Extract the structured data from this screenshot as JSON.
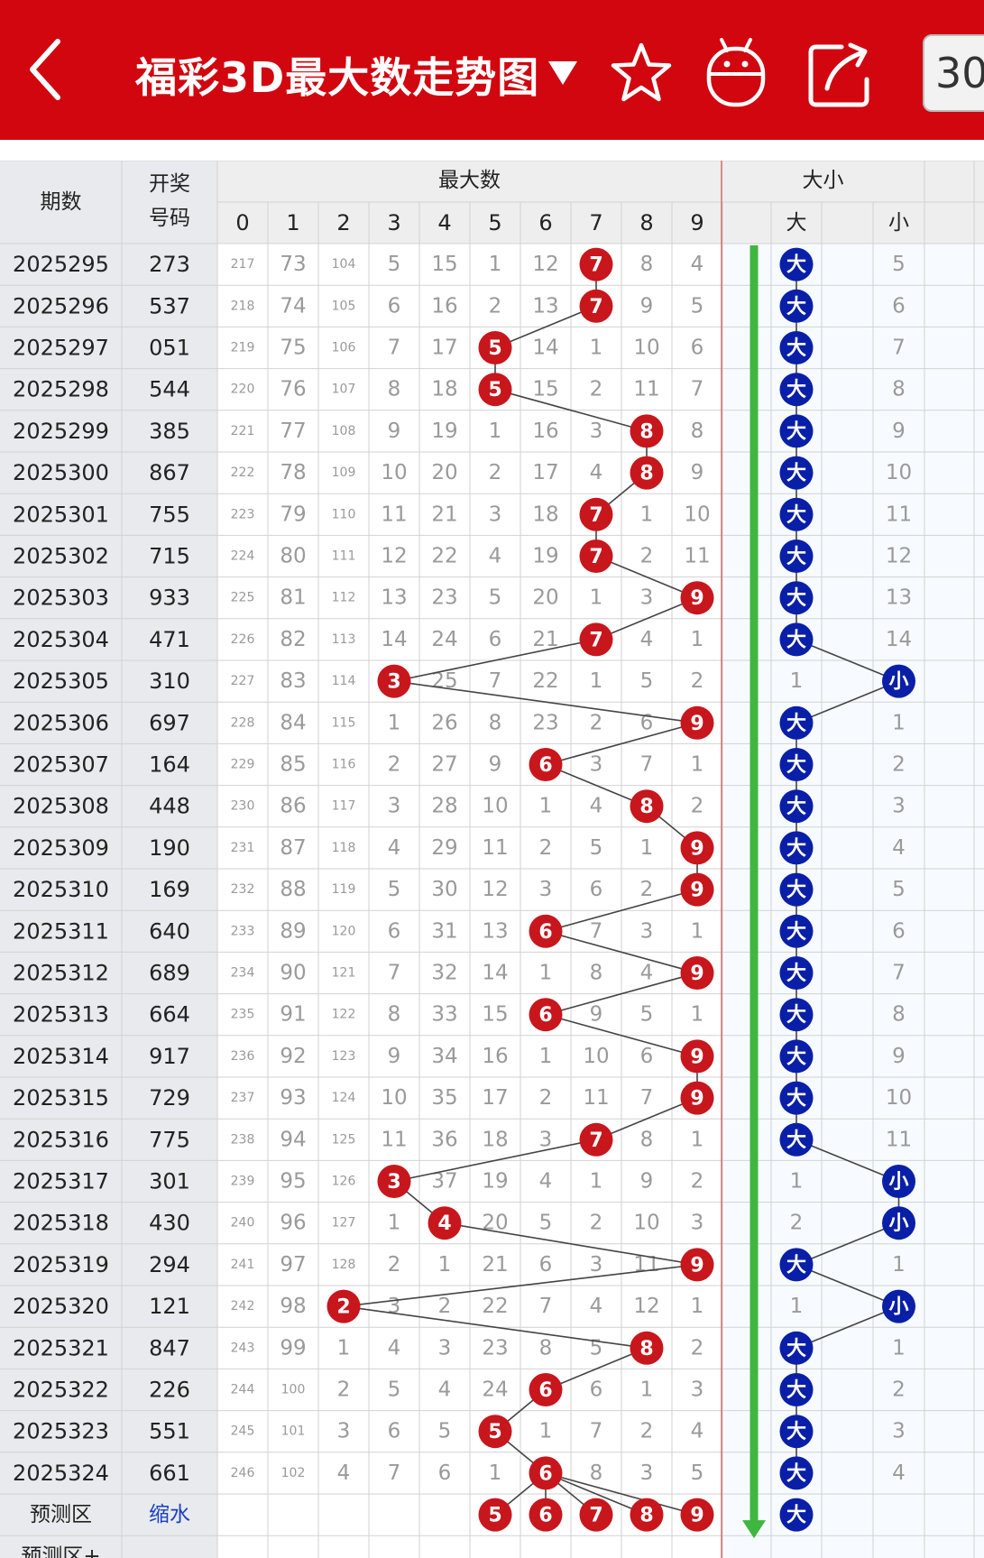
{
  "header": {
    "title": "福彩3D最大数走势图",
    "dropdown_icon": "triangle-down-icon",
    "star_icon": "star-icon",
    "android_icon": "android-icon",
    "share_icon": "share-icon",
    "period_value": "30"
  },
  "table": {
    "headers": {
      "period": "期数",
      "draw": "开奖\n号码",
      "max_group": "最大数",
      "size_group": "大小",
      "digits": [
        "0",
        "1",
        "2",
        "3",
        "4",
        "5",
        "6",
        "7",
        "8",
        "9"
      ],
      "big": "大",
      "small": "小"
    },
    "rows": [
      {
        "period": "2025295",
        "draw": "273",
        "max": 7,
        "miss": [
          "217",
          "73",
          "104",
          "5",
          "15",
          "1",
          "12",
          "",
          "8",
          "4"
        ],
        "size": "大",
        "small_miss": "5"
      },
      {
        "period": "2025296",
        "draw": "537",
        "max": 7,
        "miss": [
          "218",
          "74",
          "105",
          "6",
          "16",
          "2",
          "13",
          "",
          "9",
          "5"
        ],
        "size": "大",
        "small_miss": "6"
      },
      {
        "period": "2025297",
        "draw": "051",
        "max": 5,
        "miss": [
          "219",
          "75",
          "106",
          "7",
          "17",
          "",
          "14",
          "1",
          "10",
          "6"
        ],
        "size": "大",
        "small_miss": "7"
      },
      {
        "period": "2025298",
        "draw": "544",
        "max": 5,
        "miss": [
          "220",
          "76",
          "107",
          "8",
          "18",
          "",
          "15",
          "2",
          "11",
          "7"
        ],
        "size": "大",
        "small_miss": "8"
      },
      {
        "period": "2025299",
        "draw": "385",
        "max": 8,
        "miss": [
          "221",
          "77",
          "108",
          "9",
          "19",
          "1",
          "16",
          "3",
          "",
          "8"
        ],
        "size": "大",
        "small_miss": "9"
      },
      {
        "period": "2025300",
        "draw": "867",
        "max": 8,
        "miss": [
          "222",
          "78",
          "109",
          "10",
          "20",
          "2",
          "17",
          "4",
          "",
          "9"
        ],
        "size": "大",
        "small_miss": "10"
      },
      {
        "period": "2025301",
        "draw": "755",
        "max": 7,
        "miss": [
          "223",
          "79",
          "110",
          "11",
          "21",
          "3",
          "18",
          "",
          "1",
          "10"
        ],
        "size": "大",
        "small_miss": "11"
      },
      {
        "period": "2025302",
        "draw": "715",
        "max": 7,
        "miss": [
          "224",
          "80",
          "111",
          "12",
          "22",
          "4",
          "19",
          "",
          "2",
          "11"
        ],
        "size": "大",
        "small_miss": "12"
      },
      {
        "period": "2025303",
        "draw": "933",
        "max": 9,
        "miss": [
          "225",
          "81",
          "112",
          "13",
          "23",
          "5",
          "20",
          "1",
          "3",
          ""
        ],
        "size": "大",
        "small_miss": "13"
      },
      {
        "period": "2025304",
        "draw": "471",
        "max": 7,
        "miss": [
          "226",
          "82",
          "113",
          "14",
          "24",
          "6",
          "21",
          "",
          "4",
          "1"
        ],
        "size": "大",
        "small_miss": "14"
      },
      {
        "period": "2025305",
        "draw": "310",
        "max": 3,
        "miss": [
          "227",
          "83",
          "114",
          "",
          "25",
          "7",
          "22",
          "1",
          "5",
          "2"
        ],
        "size": "小",
        "big_miss": "1"
      },
      {
        "period": "2025306",
        "draw": "697",
        "max": 9,
        "miss": [
          "228",
          "84",
          "115",
          "1",
          "26",
          "8",
          "23",
          "2",
          "6",
          ""
        ],
        "size": "大",
        "small_miss": "1"
      },
      {
        "period": "2025307",
        "draw": "164",
        "max": 6,
        "miss": [
          "229",
          "85",
          "116",
          "2",
          "27",
          "9",
          "",
          "3",
          "7",
          "1"
        ],
        "size": "大",
        "small_miss": "2"
      },
      {
        "period": "2025308",
        "draw": "448",
        "max": 8,
        "miss": [
          "230",
          "86",
          "117",
          "3",
          "28",
          "10",
          "1",
          "4",
          "",
          "2"
        ],
        "size": "大",
        "small_miss": "3"
      },
      {
        "period": "2025309",
        "draw": "190",
        "max": 9,
        "miss": [
          "231",
          "87",
          "118",
          "4",
          "29",
          "11",
          "2",
          "5",
          "1",
          ""
        ],
        "size": "大",
        "small_miss": "4"
      },
      {
        "period": "2025310",
        "draw": "169",
        "max": 9,
        "miss": [
          "232",
          "88",
          "119",
          "5",
          "30",
          "12",
          "3",
          "6",
          "2",
          ""
        ],
        "size": "大",
        "small_miss": "5"
      },
      {
        "period": "2025311",
        "draw": "640",
        "max": 6,
        "miss": [
          "233",
          "89",
          "120",
          "6",
          "31",
          "13",
          "",
          "7",
          "3",
          "1"
        ],
        "size": "大",
        "small_miss": "6"
      },
      {
        "period": "2025312",
        "draw": "689",
        "max": 9,
        "miss": [
          "234",
          "90",
          "121",
          "7",
          "32",
          "14",
          "1",
          "8",
          "4",
          ""
        ],
        "size": "大",
        "small_miss": "7"
      },
      {
        "period": "2025313",
        "draw": "664",
        "max": 6,
        "miss": [
          "235",
          "91",
          "122",
          "8",
          "33",
          "15",
          "",
          "9",
          "5",
          "1"
        ],
        "size": "大",
        "small_miss": "8"
      },
      {
        "period": "2025314",
        "draw": "917",
        "max": 9,
        "miss": [
          "236",
          "92",
          "123",
          "9",
          "34",
          "16",
          "1",
          "10",
          "6",
          ""
        ],
        "size": "大",
        "small_miss": "9"
      },
      {
        "period": "2025315",
        "draw": "729",
        "max": 9,
        "miss": [
          "237",
          "93",
          "124",
          "10",
          "35",
          "17",
          "2",
          "11",
          "7",
          ""
        ],
        "size": "大",
        "small_miss": "10"
      },
      {
        "period": "2025316",
        "draw": "775",
        "max": 7,
        "miss": [
          "238",
          "94",
          "125",
          "11",
          "36",
          "18",
          "3",
          "",
          "8",
          "1"
        ],
        "size": "大",
        "small_miss": "11"
      },
      {
        "period": "2025317",
        "draw": "301",
        "max": 3,
        "miss": [
          "239",
          "95",
          "126",
          "",
          "37",
          "19",
          "4",
          "1",
          "9",
          "2"
        ],
        "size": "小",
        "big_miss": "1"
      },
      {
        "period": "2025318",
        "draw": "430",
        "max": 4,
        "miss": [
          "240",
          "96",
          "127",
          "1",
          "",
          "20",
          "5",
          "2",
          "10",
          "3"
        ],
        "size": "小",
        "big_miss": "2"
      },
      {
        "period": "2025319",
        "draw": "294",
        "max": 9,
        "miss": [
          "241",
          "97",
          "128",
          "2",
          "1",
          "21",
          "6",
          "3",
          "11",
          ""
        ],
        "size": "大",
        "small_miss": "1"
      },
      {
        "period": "2025320",
        "draw": "121",
        "max": 2,
        "miss": [
          "242",
          "98",
          "",
          "3",
          "2",
          "22",
          "7",
          "4",
          "12",
          "1"
        ],
        "size": "小",
        "big_miss": "1"
      },
      {
        "period": "2025321",
        "draw": "847",
        "max": 8,
        "miss": [
          "243",
          "99",
          "1",
          "4",
          "3",
          "23",
          "8",
          "5",
          "",
          "2"
        ],
        "size": "大",
        "small_miss": "1"
      },
      {
        "period": "2025322",
        "draw": "226",
        "max": 6,
        "miss": [
          "244",
          "100",
          "2",
          "5",
          "4",
          "24",
          "",
          "6",
          "1",
          "3"
        ],
        "size": "大",
        "small_miss": "2"
      },
      {
        "period": "2025323",
        "draw": "551",
        "max": 5,
        "miss": [
          "245",
          "101",
          "3",
          "6",
          "5",
          "",
          "1",
          "7",
          "2",
          "4"
        ],
        "size": "大",
        "small_miss": "3"
      },
      {
        "period": "2025324",
        "draw": "661",
        "max": 6,
        "miss": [
          "246",
          "102",
          "4",
          "7",
          "6",
          "1",
          "",
          "8",
          "3",
          "5"
        ],
        "size": "大",
        "small_miss": "4"
      }
    ],
    "prediction": {
      "label": "预测区",
      "link": "缩水",
      "digits": [
        5,
        6,
        7,
        8,
        9
      ],
      "size": "大"
    },
    "prediction_plus": {
      "label": "预测区+"
    }
  },
  "colors": {
    "header_red": "#d1060f",
    "ball_red": "#c8161d",
    "ball_blue": "#0a1fa8",
    "arrow_green": "#3fb63f",
    "left_col_bg": "#e8eaed",
    "header_bg": "#eeeeee",
    "miss_text": "#9a9a9a"
  }
}
